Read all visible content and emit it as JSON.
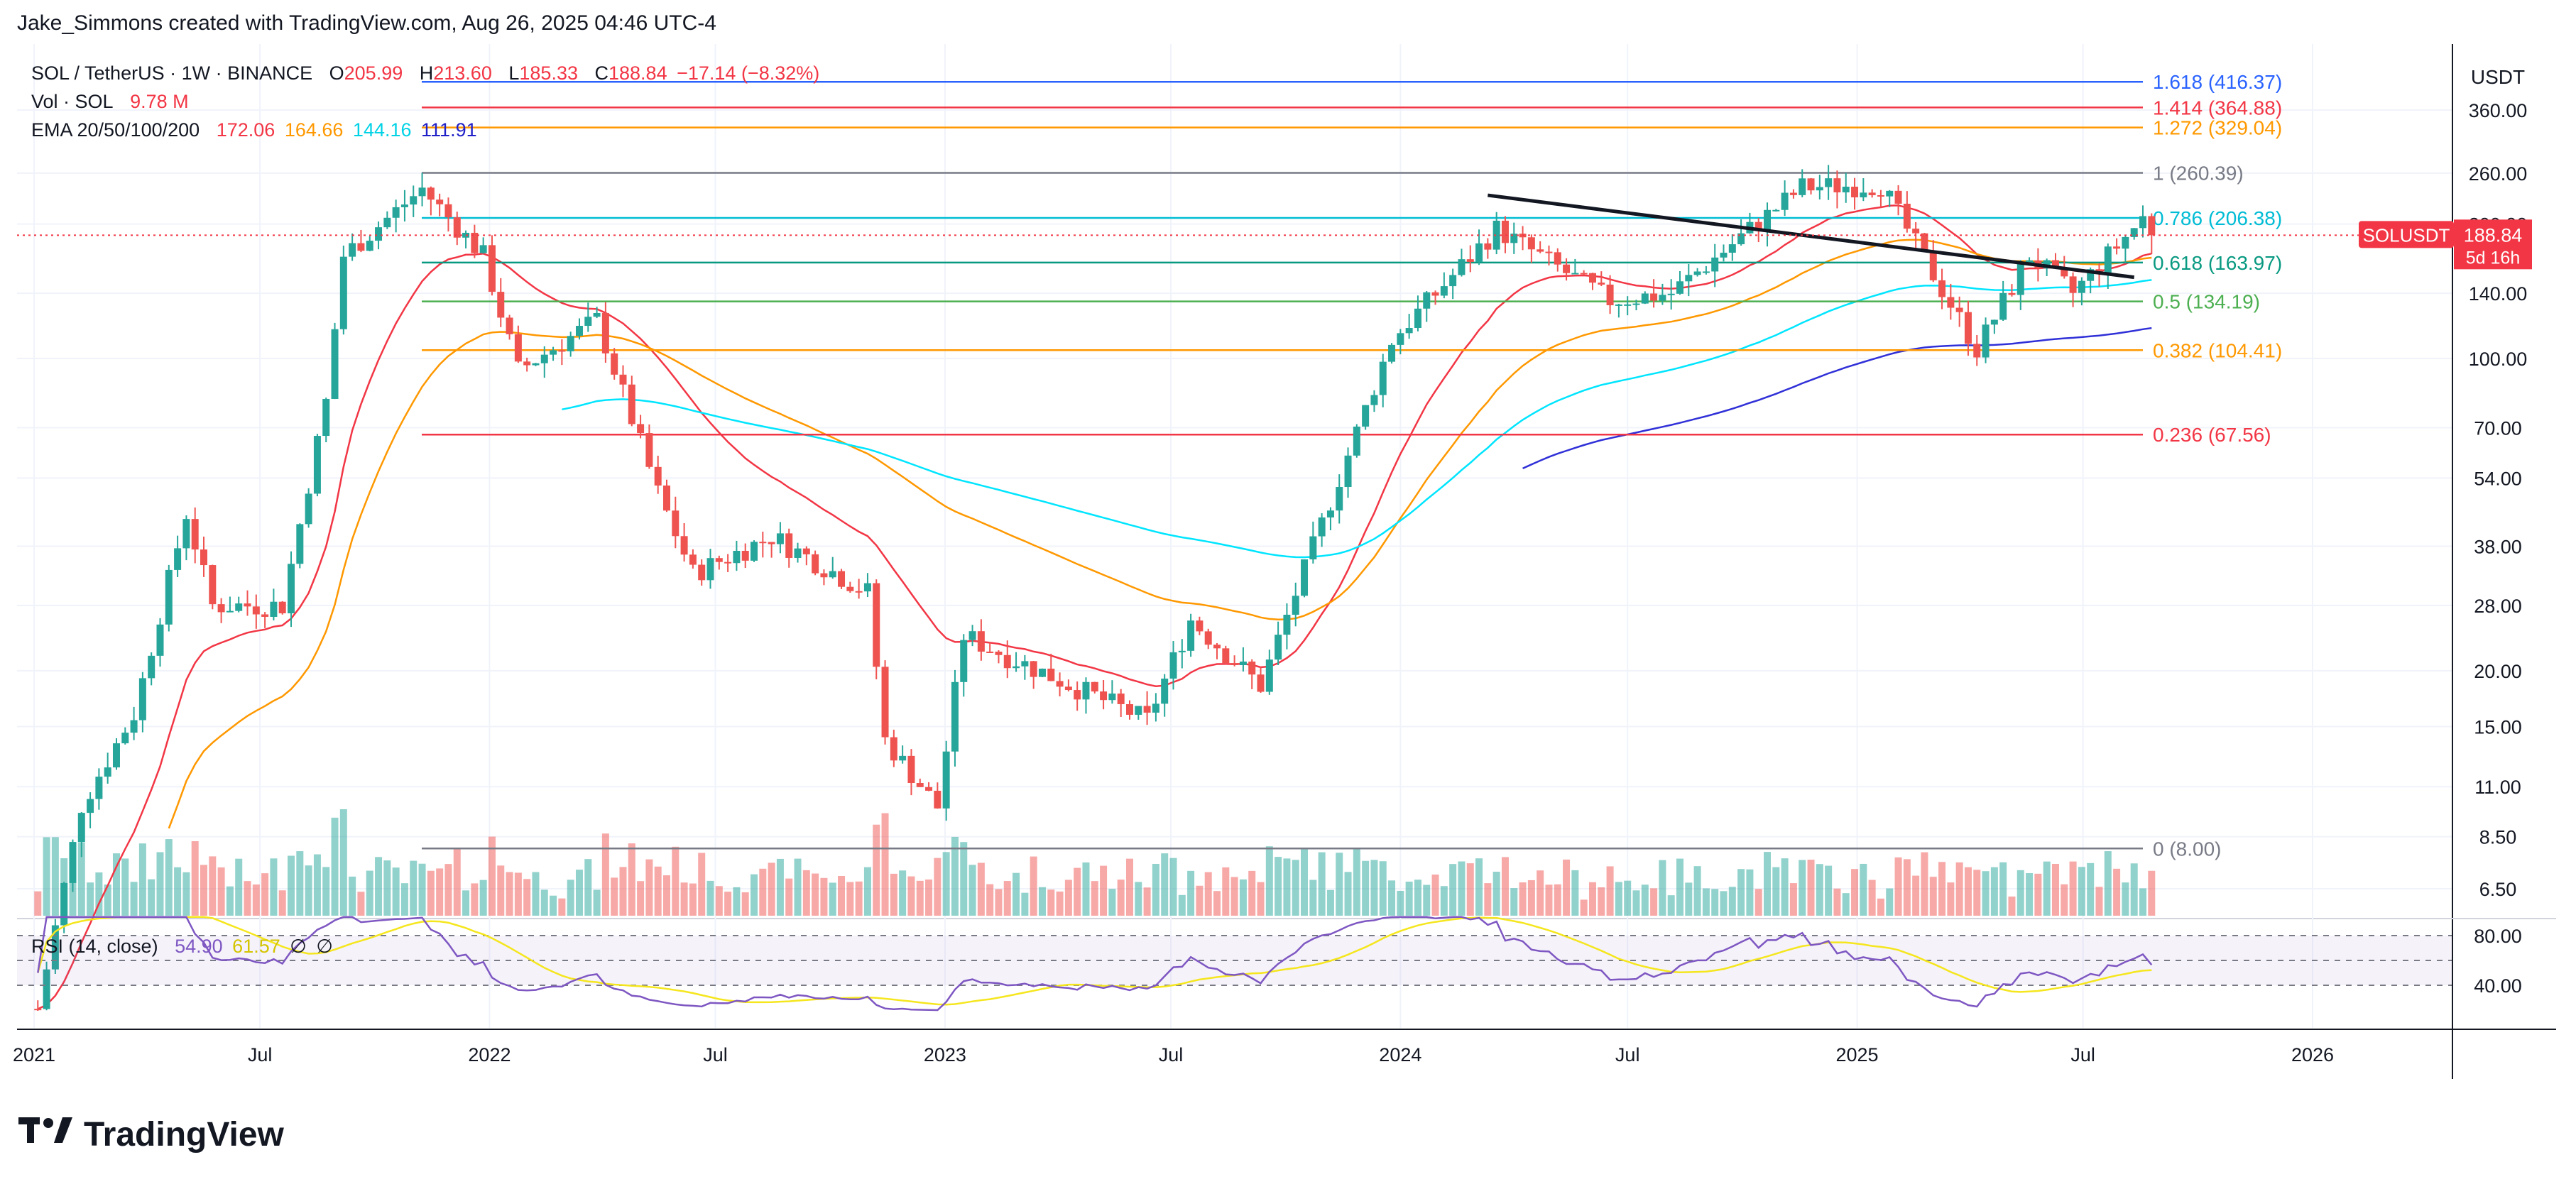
{
  "header": {
    "credit": "Jake_Simmons created with TradingView.com, Aug 26, 2025 04:46 UTC-4"
  },
  "legend": {
    "symbol": "SOL / TetherUS · 1W · BINANCE",
    "open_label": "O",
    "open": "205.99",
    "high_label": "H",
    "high": "213.60",
    "low_label": "L",
    "low": "185.33",
    "close_label": "C",
    "close": "188.84",
    "change": "−17.14 (−8.32%)",
    "vol_label": "Vol · SOL",
    "vol_value": "9.78 M",
    "ema_label": "EMA 20/50/100/200",
    "ema_values": [
      "172.06",
      "164.66",
      "144.16",
      "111.91"
    ],
    "rsi_label": "RSI (14, close)",
    "rsi_values": [
      "54.90",
      "61.57",
      "∅",
      "∅"
    ]
  },
  "footer": {
    "logo_text": "TradingView"
  },
  "colors": {
    "up": "#26a69a",
    "down": "#ef5350",
    "ema20": "#f23645",
    "ema50": "#ff9800",
    "ema100": "#00e5ff",
    "ema200": "#3030d8",
    "rsi": "#7e57c2",
    "rsi_ma": "#f5e61e",
    "trendline": "#131722",
    "last_price": "#f23645"
  },
  "chart_data": {
    "type": "candlestick",
    "title": "SOL / TetherUS · 1W · BINANCE",
    "price_axis": {
      "currency": "USDT",
      "scale": "log",
      "ticks": [
        "360.00",
        "260.00",
        "200.00",
        "140.00",
        "100.00",
        "70.00",
        "54.00",
        "38.00",
        "28.00",
        "20.00",
        "15.00",
        "11.00",
        "8.50",
        "6.50"
      ]
    },
    "time_axis": {
      "ticks": [
        "2021",
        "Jul",
        "2022",
        "Jul",
        "2023",
        "Jul",
        "2024",
        "Jul",
        "2025",
        "Jul",
        "2026"
      ]
    },
    "last_price": {
      "symbol": "SOLUSDT",
      "value": "188.84",
      "countdown": "5d 16h"
    },
    "fib_levels": [
      {
        "ratio": "1.618",
        "label": "1.618 (416.37)",
        "price": 416.37,
        "color": "#2962ff"
      },
      {
        "ratio": "1.414",
        "label": "1.414 (364.88)",
        "price": 364.88,
        "color": "#f23645"
      },
      {
        "ratio": "1.272",
        "label": "1.272 (329.04)",
        "price": 329.04,
        "color": "#ff9800"
      },
      {
        "ratio": "1",
        "label": "1 (260.39)",
        "price": 260.39,
        "color": "#787b86"
      },
      {
        "ratio": "0.786",
        "label": "0.786 (206.38)",
        "price": 206.38,
        "color": "#00bcd4"
      },
      {
        "ratio": "0.618",
        "label": "0.618 (163.97)",
        "price": 163.97,
        "color": "#089981"
      },
      {
        "ratio": "0.5",
        "label": "0.5 (134.19)",
        "price": 134.19,
        "color": "#4caf50"
      },
      {
        "ratio": "0.382",
        "label": "0.382 (104.41)",
        "price": 104.41,
        "color": "#ff9800"
      },
      {
        "ratio": "0.236",
        "label": "0.236 (67.56)",
        "price": 67.56,
        "color": "#f23645"
      },
      {
        "ratio": "0",
        "label": "0 (8.00)",
        "price": 8.0,
        "color": "#787b86"
      }
    ],
    "trendline": {
      "start": {
        "date": "2024-03-11",
        "price": 232
      },
      "end": {
        "date": "2025-08-11",
        "price": 152
      }
    },
    "rsi": {
      "label": "RSI (14, close)",
      "upper": "80.00",
      "lower": "40.00",
      "last": 54.9,
      "ma_last": 61.57
    },
    "weekly_closes_sample": [
      {
        "date": "2021-01-04",
        "close": 3.5
      },
      {
        "date": "2021-02-08",
        "close": 10.0
      },
      {
        "date": "2021-03-22",
        "close": 16.0
      },
      {
        "date": "2021-05-03",
        "close": 45.0
      },
      {
        "date": "2021-05-24",
        "close": 28.0
      },
      {
        "date": "2021-07-19",
        "close": 28.0
      },
      {
        "date": "2021-08-23",
        "close": 80.0
      },
      {
        "date": "2021-09-06",
        "close": 170.0
      },
      {
        "date": "2021-11-08",
        "close": 240.0
      },
      {
        "date": "2021-12-27",
        "close": 170.0
      },
      {
        "date": "2022-01-24",
        "close": 94.0
      },
      {
        "date": "2022-03-28",
        "close": 122.0
      },
      {
        "date": "2022-05-16",
        "close": 50.0
      },
      {
        "date": "2022-06-13",
        "close": 33.0
      },
      {
        "date": "2022-08-15",
        "close": 40.0
      },
      {
        "date": "2022-10-31",
        "close": 30.0
      },
      {
        "date": "2022-11-14",
        "close": 14.0
      },
      {
        "date": "2022-12-26",
        "close": 9.9
      },
      {
        "date": "2023-01-16",
        "close": 24.0
      },
      {
        "date": "2023-02-13",
        "close": 22.0
      },
      {
        "date": "2023-06-12",
        "close": 15.5
      },
      {
        "date": "2023-07-17",
        "close": 26.0
      },
      {
        "date": "2023-09-11",
        "close": 18.5
      },
      {
        "date": "2023-11-06",
        "close": 48.0
      },
      {
        "date": "2023-12-25",
        "close": 110.0
      },
      {
        "date": "2024-03-18",
        "close": 195.0
      },
      {
        "date": "2024-06-17",
        "close": 135.0
      },
      {
        "date": "2024-08-05",
        "close": 140.0
      },
      {
        "date": "2024-11-18",
        "close": 242.0
      },
      {
        "date": "2025-01-20",
        "close": 245.0
      },
      {
        "date": "2025-04-07",
        "close": 105.0
      },
      {
        "date": "2025-05-19",
        "close": 170.0
      },
      {
        "date": "2025-06-23",
        "close": 140.0
      },
      {
        "date": "2025-08-18",
        "close": 206.0
      },
      {
        "date": "2025-08-25",
        "close": 188.84
      }
    ]
  }
}
